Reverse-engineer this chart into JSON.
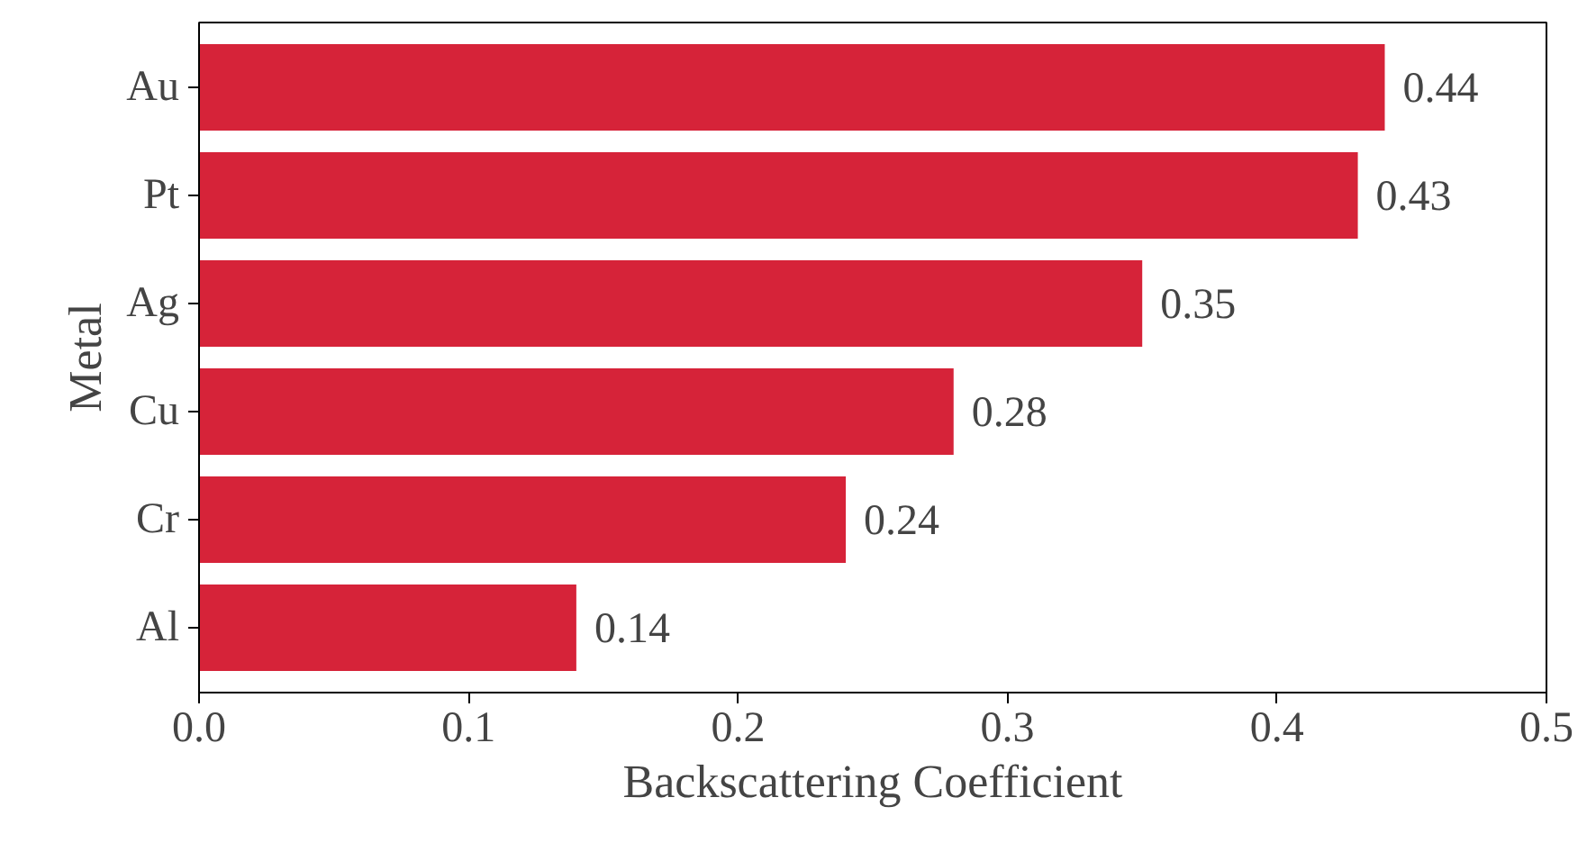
{
  "chart_data": {
    "type": "bar",
    "orientation": "horizontal",
    "xlabel": "Backscattering Coefficient",
    "ylabel": "Metal",
    "categories": [
      "Au",
      "Pt",
      "Ag",
      "Cu",
      "Cr",
      "Al"
    ],
    "values": [
      0.44,
      0.43,
      0.35,
      0.28,
      0.24,
      0.14
    ],
    "color": "#d62339",
    "xlim": [
      0,
      0.5
    ],
    "xticks": [
      {
        "value": 0,
        "label": "0.0"
      },
      0.1,
      0.2,
      0.3,
      0.4,
      0.5
    ],
    "data_labels": true,
    "grid": false
  }
}
